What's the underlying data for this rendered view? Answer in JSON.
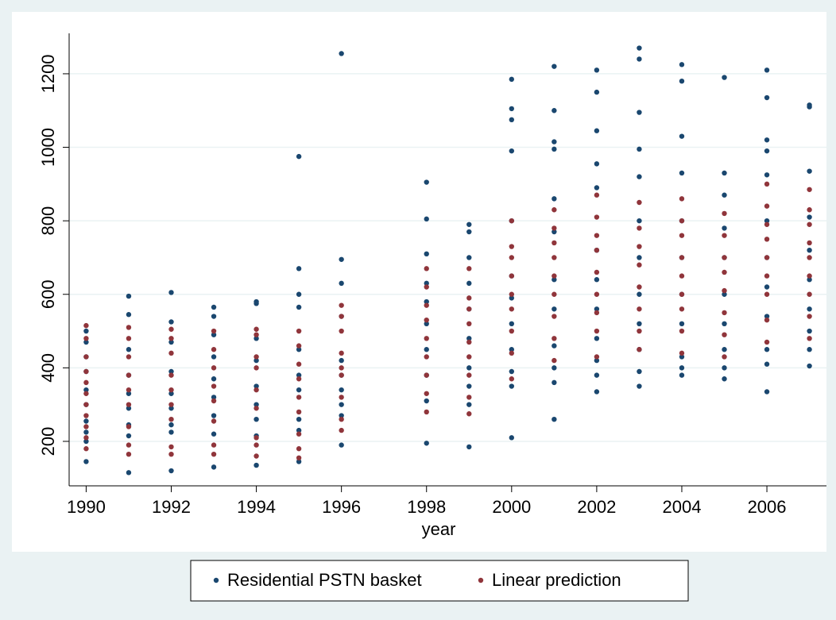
{
  "chart_data": {
    "type": "scatter",
    "x_label": "year",
    "xlim": [
      1989.6,
      2007.4
    ],
    "xticks": [
      1990,
      1992,
      1994,
      1996,
      1998,
      2000,
      2002,
      2004,
      2006
    ],
    "ylim": [
      79,
      1310
    ],
    "yticks": [
      200,
      400,
      600,
      800,
      1000,
      1200
    ],
    "grid": true,
    "legend": "bottom",
    "series": [
      {
        "name": "Residential PSTN basket",
        "color": "#1a476f",
        "x": [
          1990,
          1990,
          1990,
          1990,
          1990,
          1990,
          1990,
          1990,
          1990,
          1990,
          1991,
          1991,
          1991,
          1991,
          1991,
          1991,
          1991,
          1991,
          1991,
          1992,
          1992,
          1992,
          1992,
          1992,
          1992,
          1992,
          1992,
          1992,
          1993,
          1993,
          1993,
          1993,
          1993,
          1993,
          1993,
          1993,
          1993,
          1994,
          1994,
          1994,
          1994,
          1994,
          1994,
          1994,
          1994,
          1994,
          1995,
          1995,
          1995,
          1995,
          1995,
          1995,
          1995,
          1995,
          1995,
          1995,
          1996,
          1996,
          1996,
          1996,
          1996,
          1996,
          1996,
          1996,
          1996,
          1996,
          1998,
          1998,
          1998,
          1998,
          1998,
          1998,
          1998,
          1998,
          1998,
          1998,
          1999,
          1999,
          1999,
          1999,
          1999,
          1999,
          1999,
          1999,
          1999,
          1999,
          2000,
          2000,
          2000,
          2000,
          2000,
          2000,
          2000,
          2000,
          2000,
          2000,
          2000,
          2000,
          2001,
          2001,
          2001,
          2001,
          2001,
          2001,
          2001,
          2001,
          2001,
          2001,
          2001,
          2001,
          2002,
          2002,
          2002,
          2002,
          2002,
          2002,
          2002,
          2002,
          2002,
          2002,
          2002,
          2002,
          2003,
          2003,
          2003,
          2003,
          2003,
          2003,
          2003,
          2003,
          2003,
          2003,
          2003,
          2003,
          2004,
          2004,
          2004,
          2004,
          2004,
          2004,
          2004,
          2004,
          2004,
          2004,
          2004,
          2005,
          2005,
          2005,
          2005,
          2005,
          2005,
          2005,
          2005,
          2005,
          2005,
          2006,
          2006,
          2006,
          2006,
          2006,
          2006,
          2006,
          2006,
          2006,
          2006,
          2006,
          2006,
          2007,
          2007,
          2007,
          2007,
          2007,
          2007,
          2007,
          2007,
          2007,
          2007
        ],
        "values": [
          145,
          200,
          225,
          255,
          300,
          340,
          390,
          430,
          470,
          500,
          115,
          215,
          245,
          290,
          330,
          380,
          450,
          545,
          595,
          120,
          225,
          245,
          290,
          330,
          390,
          470,
          525,
          605,
          130,
          220,
          270,
          320,
          370,
          430,
          490,
          540,
          565,
          135,
          215,
          260,
          300,
          350,
          420,
          480,
          575,
          580,
          145,
          230,
          260,
          340,
          380,
          450,
          565,
          600,
          670,
          975,
          190,
          270,
          300,
          340,
          380,
          420,
          540,
          630,
          695,
          1255,
          195,
          310,
          380,
          450,
          520,
          580,
          630,
          710,
          805,
          905,
          185,
          300,
          350,
          400,
          480,
          560,
          630,
          700,
          770,
          790,
          210,
          350,
          390,
          450,
          520,
          590,
          650,
          800,
          990,
          1075,
          1105,
          1185,
          260,
          360,
          400,
          460,
          560,
          640,
          770,
          860,
          995,
          1015,
          1100,
          1220,
          335,
          380,
          420,
          480,
          560,
          640,
          720,
          890,
          955,
          1045,
          1150,
          1210,
          350,
          390,
          450,
          520,
          600,
          700,
          800,
          920,
          995,
          1095,
          1240,
          1270,
          380,
          400,
          430,
          520,
          600,
          700,
          800,
          930,
          1030,
          1180,
          1225,
          370,
          400,
          450,
          520,
          600,
          700,
          780,
          870,
          930,
          1190,
          335,
          410,
          450,
          540,
          620,
          700,
          800,
          925,
          990,
          1020,
          1135,
          1210,
          405,
          450,
          500,
          560,
          640,
          720,
          810,
          935,
          1110,
          1115
        ]
      },
      {
        "name": "Linear prediction",
        "color": "#90353b",
        "x": [
          1990,
          1990,
          1990,
          1990,
          1990,
          1990,
          1990,
          1990,
          1990,
          1990,
          1990,
          1991,
          1991,
          1991,
          1991,
          1991,
          1991,
          1991,
          1991,
          1991,
          1992,
          1992,
          1992,
          1992,
          1992,
          1992,
          1992,
          1992,
          1992,
          1993,
          1993,
          1993,
          1993,
          1993,
          1993,
          1993,
          1993,
          1994,
          1994,
          1994,
          1994,
          1994,
          1994,
          1994,
          1994,
          1994,
          1995,
          1995,
          1995,
          1995,
          1995,
          1995,
          1995,
          1995,
          1995,
          1996,
          1996,
          1996,
          1996,
          1996,
          1996,
          1996,
          1996,
          1996,
          1998,
          1998,
          1998,
          1998,
          1998,
          1998,
          1998,
          1998,
          1998,
          1999,
          1999,
          1999,
          1999,
          1999,
          1999,
          1999,
          1999,
          1999,
          2000,
          2000,
          2000,
          2000,
          2000,
          2000,
          2000,
          2000,
          2000,
          2001,
          2001,
          2001,
          2001,
          2001,
          2001,
          2001,
          2001,
          2001,
          2002,
          2002,
          2002,
          2002,
          2002,
          2002,
          2002,
          2002,
          2002,
          2003,
          2003,
          2003,
          2003,
          2003,
          2003,
          2003,
          2003,
          2004,
          2004,
          2004,
          2004,
          2004,
          2004,
          2004,
          2004,
          2004,
          2005,
          2005,
          2005,
          2005,
          2005,
          2005,
          2005,
          2005,
          2006,
          2006,
          2006,
          2006,
          2006,
          2006,
          2006,
          2006,
          2006,
          2007,
          2007,
          2007,
          2007,
          2007,
          2007,
          2007,
          2007,
          2007
        ],
        "values": [
          180,
          210,
          240,
          270,
          300,
          330,
          360,
          390,
          430,
          480,
          515,
          165,
          190,
          240,
          300,
          340,
          380,
          430,
          480,
          510,
          165,
          185,
          260,
          300,
          340,
          380,
          440,
          480,
          505,
          165,
          190,
          255,
          310,
          350,
          400,
          450,
          500,
          160,
          190,
          210,
          290,
          340,
          400,
          430,
          490,
          505,
          155,
          180,
          220,
          280,
          320,
          370,
          410,
          460,
          500,
          230,
          260,
          320,
          380,
          400,
          440,
          500,
          540,
          570,
          280,
          330,
          380,
          430,
          480,
          530,
          570,
          620,
          670,
          275,
          320,
          380,
          430,
          470,
          520,
          560,
          590,
          670,
          370,
          440,
          500,
          560,
          600,
          650,
          700,
          730,
          800,
          420,
          480,
          540,
          600,
          650,
          700,
          740,
          780,
          830,
          430,
          500,
          550,
          600,
          660,
          720,
          760,
          810,
          870,
          450,
          500,
          560,
          620,
          680,
          730,
          780,
          850,
          440,
          500,
          560,
          600,
          650,
          700,
          760,
          800,
          860,
          430,
          490,
          550,
          610,
          660,
          700,
          760,
          820,
          470,
          530,
          600,
          650,
          700,
          750,
          790,
          840,
          900,
          480,
          540,
          600,
          650,
          700,
          740,
          790,
          830,
          885
        ]
      }
    ]
  }
}
